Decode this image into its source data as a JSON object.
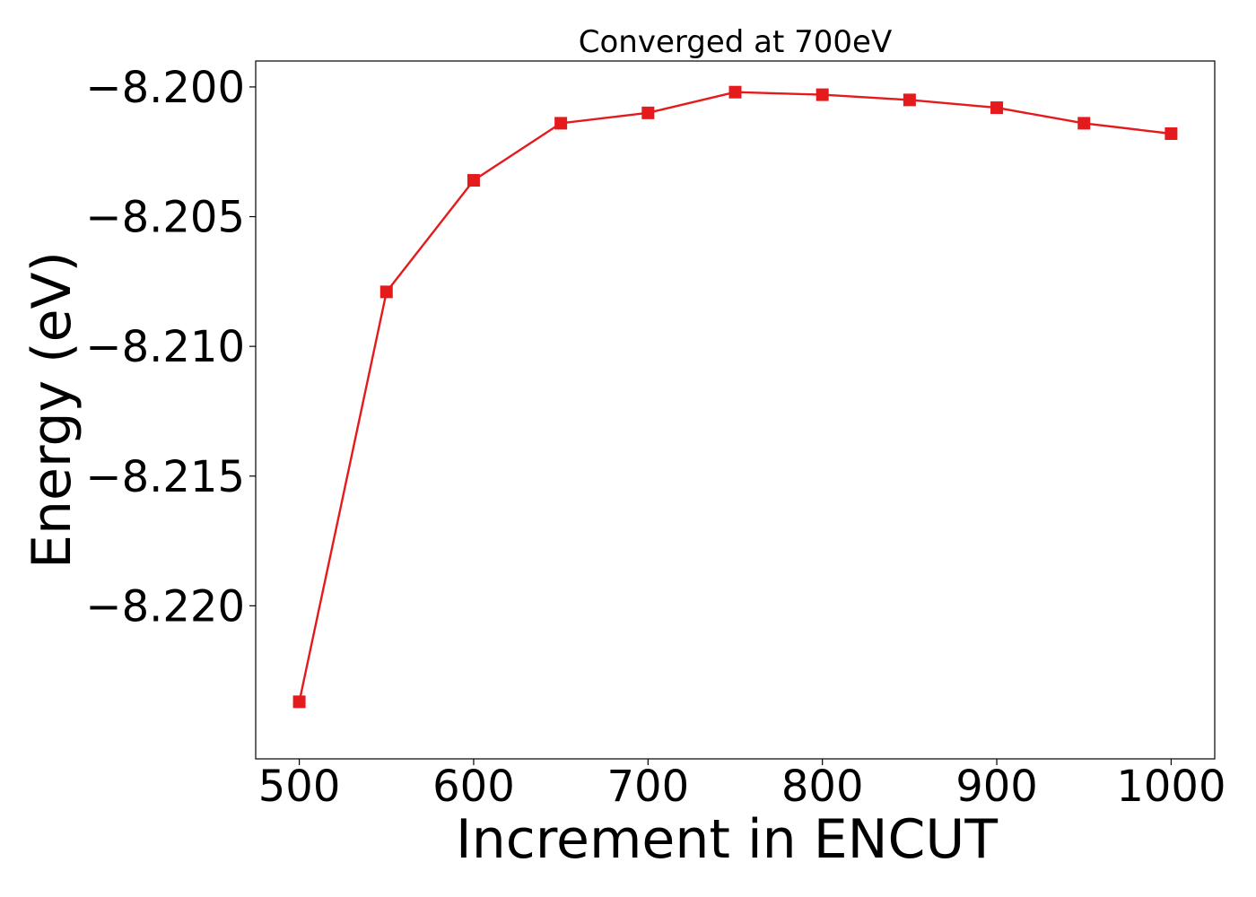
{
  "chart_data": {
    "type": "line",
    "title": "Converged at 700eV",
    "xlabel": "Increment in ENCUT",
    "ylabel": "Energy (eV)",
    "xlim": [
      475,
      1025
    ],
    "ylim": [
      -8.2259,
      -8.199
    ],
    "x_ticks": [
      500,
      600,
      700,
      800,
      900,
      1000
    ],
    "y_ticks": [
      -8.2,
      -8.205,
      -8.21,
      -8.215,
      -8.22
    ],
    "x_tick_labels": [
      "500",
      "600",
      "700",
      "800",
      "900",
      "1000"
    ],
    "y_tick_labels": [
      "−8.200",
      "−8.205",
      "−8.210",
      "−8.215",
      "−8.220"
    ],
    "grid": false,
    "series": [
      {
        "color": "#e41a1c",
        "marker": "square",
        "x": [
          500,
          550,
          600,
          650,
          700,
          750,
          800,
          850,
          900,
          950,
          1000
        ],
        "y": [
          -8.2237,
          -8.2079,
          -8.2036,
          -8.2014,
          -8.201,
          -8.2002,
          -8.2003,
          -8.2005,
          -8.2008,
          -8.2014,
          -8.2018
        ]
      }
    ]
  }
}
